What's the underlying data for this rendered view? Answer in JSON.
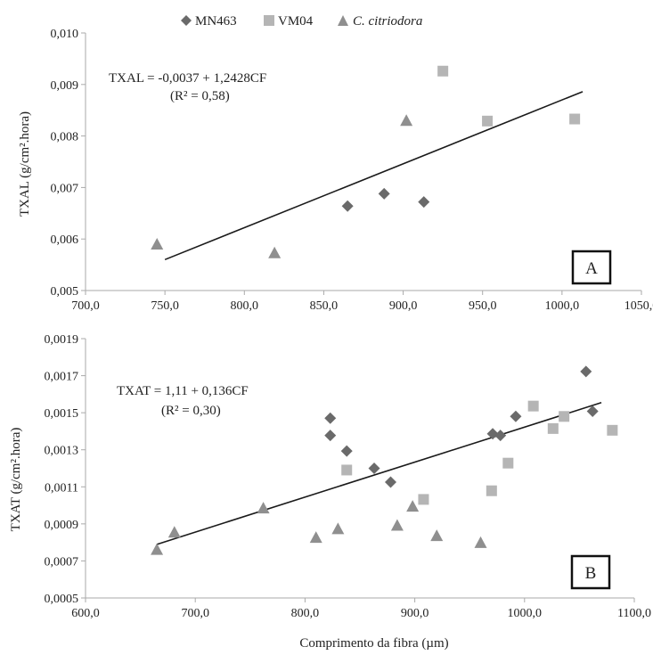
{
  "legend": {
    "items": [
      {
        "label": "MN463",
        "italic": false,
        "marker": "diamond"
      },
      {
        "label": "VM04",
        "italic": false,
        "marker": "square"
      },
      {
        "label": "C. citriodora",
        "italic": true,
        "marker": "triangle"
      }
    ]
  },
  "colors": {
    "MN463": "#6a6a6a",
    "VM04": "#b5b5b5",
    "C. citriodora": "#8f8f8f",
    "trendline": "#1a1a1a",
    "axis": "#aaaaaa"
  },
  "shared_xlabel": "Comprimento da fibra (µm)",
  "chart_data": [
    {
      "type": "scatter",
      "panel_label": "A",
      "ylabel": "TXAL (g/cm².hora)",
      "xlim": [
        700,
        1050
      ],
      "ylim": [
        0.005,
        0.01
      ],
      "xticks": [
        "700,0",
        "750,0",
        "800,0",
        "850,0",
        "900,0",
        "950,0",
        "1000,0",
        "1050,0"
      ],
      "yticks": [
        "0,005",
        "0,006",
        "0,007",
        "0,008",
        "0,009",
        "0,010"
      ],
      "equation": "TXAL = -0,0037 + 1,2428CF",
      "r2": "(R² = 0,58)",
      "trendline": {
        "intercept": -0.0037,
        "slope": 1.24e-05,
        "x_range": [
          750,
          1013
        ]
      },
      "series": [
        {
          "name": "MN463",
          "marker": "diamond",
          "points": [
            [
              865,
              0.00664
            ],
            [
              888,
              0.00688
            ],
            [
              913,
              0.00672
            ]
          ]
        },
        {
          "name": "VM04",
          "marker": "square",
          "points": [
            [
              925,
              0.00926
            ],
            [
              953,
              0.00829
            ],
            [
              1008,
              0.00833
            ]
          ]
        },
        {
          "name": "C. citriodora",
          "marker": "triangle",
          "points": [
            [
              745,
              0.0059
            ],
            [
              819,
              0.00573
            ],
            [
              902,
              0.0083
            ]
          ]
        }
      ]
    },
    {
      "type": "scatter",
      "panel_label": "B",
      "ylabel": "TXAT (g/cm².hora)",
      "xlim": [
        600,
        1100
      ],
      "ylim": [
        0.0005,
        0.002
      ],
      "xticks": [
        "600,0",
        "700,0",
        "800,0",
        "900,0",
        "1000,0",
        "1100,0"
      ],
      "yticks": [
        "0,0005",
        "0,0007",
        "0,0009",
        "0,0011",
        "0,0013",
        "0,0015",
        "0,0017",
        "0,0019"
      ],
      "equation": "TXAT = 1,11 + 0,136CF",
      "r2": "(R² = 0,30)",
      "trendline": {
        "x_range": [
          665,
          1070
        ],
        "y_range": [
          0.00081,
          0.00163
        ]
      },
      "series": [
        {
          "name": "MN463",
          "marker": "diamond",
          "points": [
            [
              823,
              0.00154
            ],
            [
              823,
              0.00144
            ],
            [
              838,
              0.00135
            ],
            [
              863,
              0.00125
            ],
            [
              878,
              0.00117
            ],
            [
              971,
              0.00145
            ],
            [
              978,
              0.00144
            ],
            [
              992,
              0.00155
            ],
            [
              1056,
              0.00181
            ],
            [
              1062,
              0.00158
            ]
          ]
        },
        {
          "name": "VM04",
          "marker": "square",
          "points": [
            [
              838,
              0.00124
            ],
            [
              908,
              0.00107
            ],
            [
              970,
              0.00112
            ],
            [
              985,
              0.00128
            ],
            [
              1008,
              0.00161
            ],
            [
              1026,
              0.00148
            ],
            [
              1036,
              0.00155
            ],
            [
              1080,
              0.00147
            ]
          ]
        },
        {
          "name": "C. citriodora",
          "marker": "triangle",
          "points": [
            [
              665,
              0.00078
            ],
            [
              681,
              0.00088
            ],
            [
              762,
              0.00102
            ],
            [
              810,
              0.00085
            ],
            [
              830,
              0.0009
            ],
            [
              884,
              0.00092
            ],
            [
              898,
              0.00103
            ],
            [
              920,
              0.00086
            ],
            [
              960,
              0.00082
            ]
          ]
        }
      ]
    }
  ]
}
